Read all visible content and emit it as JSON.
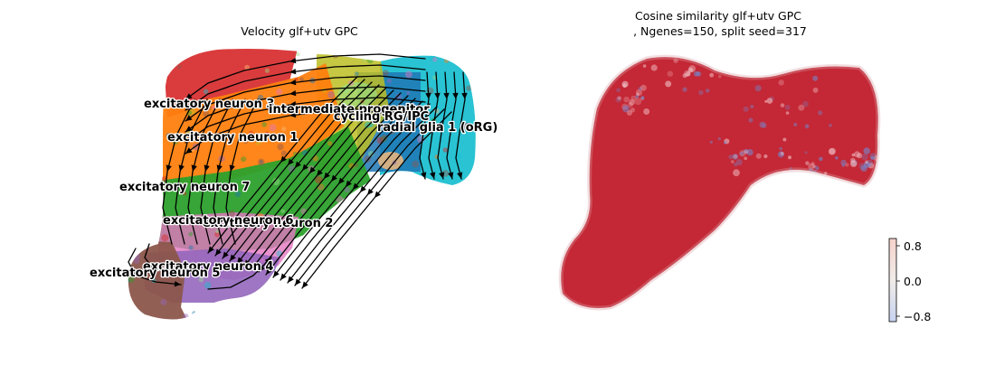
{
  "chart_data": [
    {
      "type": "scatter",
      "title": "Velocity glf+utv GPC",
      "xlabel": "",
      "ylabel": "",
      "grid": false,
      "axes_visible": false,
      "overlay": "velocity stream arrows",
      "clusters": [
        {
          "name": "excitatory neuron 3",
          "color": "#d62728"
        },
        {
          "name": "intermediate progenitor",
          "color": "#bcbd22"
        },
        {
          "name": "cycling RG/IPC",
          "color": "#1f77b4"
        },
        {
          "name": "radial glia 1 (oRG)",
          "color": "#17becf"
        },
        {
          "name": "excitatory neuron 1",
          "color": "#ff7f0e"
        },
        {
          "name": "excitatory neuron 7",
          "color": "#2ca02c"
        },
        {
          "name": "excitatory neuron 6",
          "color": "#e377c2"
        },
        {
          "name": "excitatory neuron 2",
          "color": "#8c564b"
        },
        {
          "name": "excitatory neuron 4",
          "color": "#9467bd"
        },
        {
          "name": "excitatory neuron 5",
          "color": "#8c564b"
        }
      ],
      "extra_colors": [
        "#ffbb78",
        "#98df8a"
      ]
    },
    {
      "type": "scatter",
      "title": "Cosine similarity glf+utv GPC\n, Ngenes=150, split seed=317",
      "xlabel": "",
      "ylabel": "",
      "grid": false,
      "axes_visible": false,
      "dominant_value_color": "#c11b2a",
      "sparse_value_color": "#6f8fd8",
      "colorbar": {
        "ticks": [
          "0.8",
          "0.0",
          "−0.8"
        ],
        "range": [
          -0.8,
          0.8
        ],
        "colors": [
          "#c8d3f0",
          "#f0ece8",
          "#f6d2cc"
        ]
      }
    }
  ]
}
